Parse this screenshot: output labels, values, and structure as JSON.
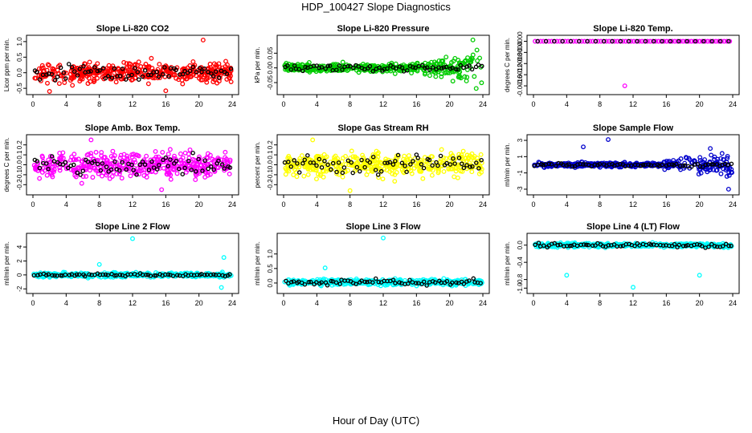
{
  "title": "HDP_100427  Slope Diagnostics",
  "xlabel": "Hour of Day (UTC)",
  "chart_data": [
    {
      "type": "scatter",
      "title": "Slope Li-820 CO2",
      "ylabel": "Licor ppm per min.",
      "color": "#ff0000",
      "xlim": [
        0,
        24
      ],
      "ylim": [
        -0.6,
        1.1
      ],
      "yticks": [
        -0.5,
        0,
        0.5,
        1
      ],
      "ytick_labels": [
        "-0.5",
        "0.0",
        "0.5",
        "1.0"
      ],
      "center": 0,
      "spread": 0.28,
      "black_spread": 0.2,
      "seed": 11,
      "outliers": [
        {
          "x": 20.5,
          "y": 1.05
        },
        {
          "x": 2,
          "y": -0.6
        },
        {
          "x": 16,
          "y": -0.58
        }
      ]
    },
    {
      "type": "scatter",
      "title": "Slope Li-820 Pressure",
      "ylabel": "kPa per min.",
      "color": "#00cc00",
      "xlim": [
        0,
        24
      ],
      "ylim": [
        -0.08,
        0.1
      ],
      "yticks": [
        -0.05,
        0,
        0.05
      ],
      "ytick_labels": [
        "-0.05",
        "0.00",
        "0.05"
      ],
      "center": 0,
      "spread": 0.012,
      "grow": 0.035,
      "black_spread": 0.01,
      "seed": 23,
      "outliers": [
        {
          "x": 22.8,
          "y": 0.095
        },
        {
          "x": 23.2,
          "y": -0.07
        }
      ]
    },
    {
      "type": "scatter",
      "title": "Slope Li-820 Temp.",
      "ylabel": "degrees C per min.",
      "color": "#ff00ff",
      "xlim": [
        0,
        24
      ],
      "ylim": [
        -0.0018,
        0.0001
      ],
      "yticks": [
        -0.0016,
        -0.0012,
        -0.0008,
        -0.0004,
        0
      ],
      "ytick_labels": [
        "-0.0016",
        "-0.0012",
        "-0.0008",
        "-0.0004",
        "0.0000"
      ],
      "mode": "line",
      "line_y": 0,
      "outliers": [
        {
          "x": 11,
          "y": -0.0016
        }
      ]
    },
    {
      "type": "scatter",
      "title": "Slope Amb. Box Temp.",
      "ylabel": "degrees C per min.",
      "color": "#ff00ff",
      "xlim": [
        0,
        24
      ],
      "ylim": [
        -0.27,
        0.27
      ],
      "yticks": [
        -0.2,
        -0.1,
        0,
        0.1,
        0.2
      ],
      "ytick_labels": [
        "-0.2",
        "-0.1",
        "0.0",
        "0.1",
        "0.2"
      ],
      "center": 0,
      "spread": 0.11,
      "black_spread": 0.08,
      "seed": 37,
      "outliers": [
        {
          "x": 7,
          "y": 0.25
        },
        {
          "x": 15.5,
          "y": -0.25
        }
      ]
    },
    {
      "type": "scatter",
      "title": "Slope Gas Stream RH",
      "ylabel": "percent per min.",
      "color": "#ffff00",
      "xlim": [
        0,
        24
      ],
      "ylim": [
        -0.27,
        0.27
      ],
      "yticks": [
        -0.2,
        -0.1,
        0,
        0.1,
        0.2
      ],
      "ytick_labels": [
        "-0.2",
        "-0.1",
        "0.0",
        "0.1",
        "0.2"
      ],
      "center": 0,
      "spread": 0.1,
      "black_spread": 0.08,
      "seed": 41,
      "outliers": [
        {
          "x": 8,
          "y": -0.26
        },
        {
          "x": 3.5,
          "y": 0.25
        }
      ]
    },
    {
      "type": "scatter",
      "title": "Slope Sample Flow",
      "ylabel": "ml/min per min.",
      "color": "#0000cc",
      "xlim": [
        0,
        24
      ],
      "ylim": [
        -3.3,
        3.3
      ],
      "yticks": [
        -3,
        -1,
        1,
        3
      ],
      "ytick_labels": [
        "-3",
        "-1",
        "1",
        "3"
      ],
      "center": 0,
      "spread": 0.25,
      "grow": 1.2,
      "black_spread": 0.2,
      "seed": 53,
      "outliers": [
        {
          "x": 9,
          "y": 3.1
        },
        {
          "x": 23.5,
          "y": -3
        },
        {
          "x": 6,
          "y": 2.2
        },
        {
          "x": 21.3,
          "y": 2
        }
      ]
    },
    {
      "type": "scatter",
      "title": "Slope Line 2 Flow",
      "ylabel": "ml/min per min.",
      "color": "#00ffff",
      "xlim": [
        0,
        24
      ],
      "ylim": [
        -2.2,
        5.5
      ],
      "yticks": [
        -2,
        0,
        2,
        4
      ],
      "ytick_labels": [
        "-2",
        "0",
        "2",
        "4"
      ],
      "center": 0,
      "spread": 0.28,
      "black_spread": 0.15,
      "seed": 67,
      "outliers": [
        {
          "x": 12,
          "y": 5.2
        },
        {
          "x": 23,
          "y": 2.5
        },
        {
          "x": 22.7,
          "y": -1.8
        },
        {
          "x": 8,
          "y": 1.5
        }
      ]
    },
    {
      "type": "scatter",
      "title": "Slope Line 3 Flow",
      "ylabel": "ml/min per min.",
      "color": "#00ffff",
      "xlim": [
        0,
        24
      ],
      "ylim": [
        -0.25,
        1.6
      ],
      "yticks": [
        0,
        0.5,
        1
      ],
      "ytick_labels": [
        "0.0",
        "0.5",
        "1.0"
      ],
      "center": 0.03,
      "spread": 0.09,
      "black_spread": 0.08,
      "seed": 79,
      "outliers": [
        {
          "x": 12,
          "y": 1.55
        },
        {
          "x": 5,
          "y": 0.52
        }
      ]
    },
    {
      "type": "scatter",
      "title": "Slope Line 4 (LT) Flow",
      "ylabel": "ml/min per min.",
      "color": "#00ffff",
      "xlim": [
        0,
        24
      ],
      "ylim": [
        -1.05,
        0.2
      ],
      "yticks": [
        -1,
        -0.8,
        -0.4,
        0
      ],
      "ytick_labels": [
        "-1.0",
        "-0.8",
        "-0.4",
        "0.0"
      ],
      "center": 0,
      "spread": 0.04,
      "black_spread": 0.04,
      "seed": 83,
      "outliers": [
        {
          "x": 4,
          "y": -0.7
        },
        {
          "x": 20,
          "y": -0.7
        },
        {
          "x": 12,
          "y": -0.98
        }
      ]
    }
  ]
}
